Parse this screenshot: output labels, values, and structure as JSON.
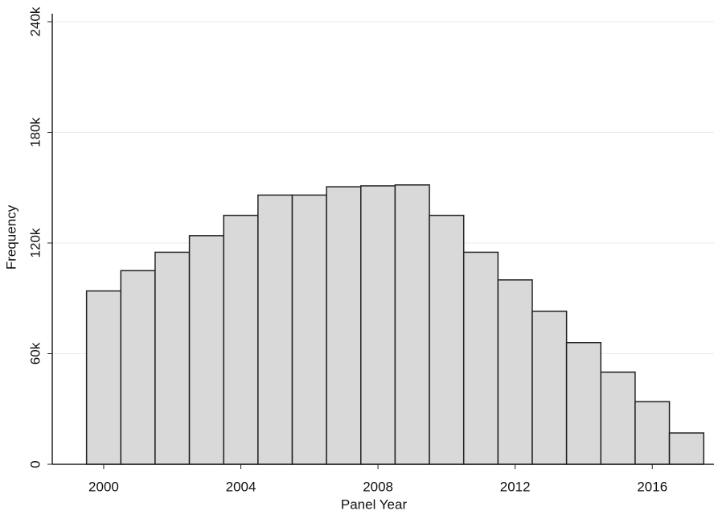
{
  "chart_data": {
    "type": "histogram",
    "x_label": "Panel Year",
    "y_label": "Frequency",
    "bins": [
      1999.5,
      2000.5,
      2001.5,
      2002.5,
      2003.5,
      2004.5,
      2005.5,
      2006.5,
      2007.5,
      2008.5,
      2009.5,
      2010.5,
      2011.5,
      2012.5,
      2013.5,
      2014.5,
      2015.5,
      2016.5,
      2017.5
    ],
    "counts": [
      94000,
      105000,
      115000,
      124000,
      135000,
      146000,
      146000,
      150500,
      151000,
      151500,
      135000,
      115000,
      100000,
      83000,
      66000,
      50000,
      34000,
      17000
    ],
    "color": "#d9d9d9",
    "edge_color": "#222222",
    "xlim": [
      1998.5,
      2017.8
    ],
    "xticks": [
      2000,
      2004,
      2008,
      2012,
      2016
    ],
    "ylim": [
      0,
      240000
    ],
    "yticks": [
      {
        "value": 0,
        "label": "0"
      },
      {
        "value": 60000,
        "label": "60k"
      },
      {
        "value": 120000,
        "label": "120k"
      },
      {
        "value": 180000,
        "label": "180k"
      },
      {
        "value": 240000,
        "label": "240k"
      }
    ],
    "grid": true
  }
}
